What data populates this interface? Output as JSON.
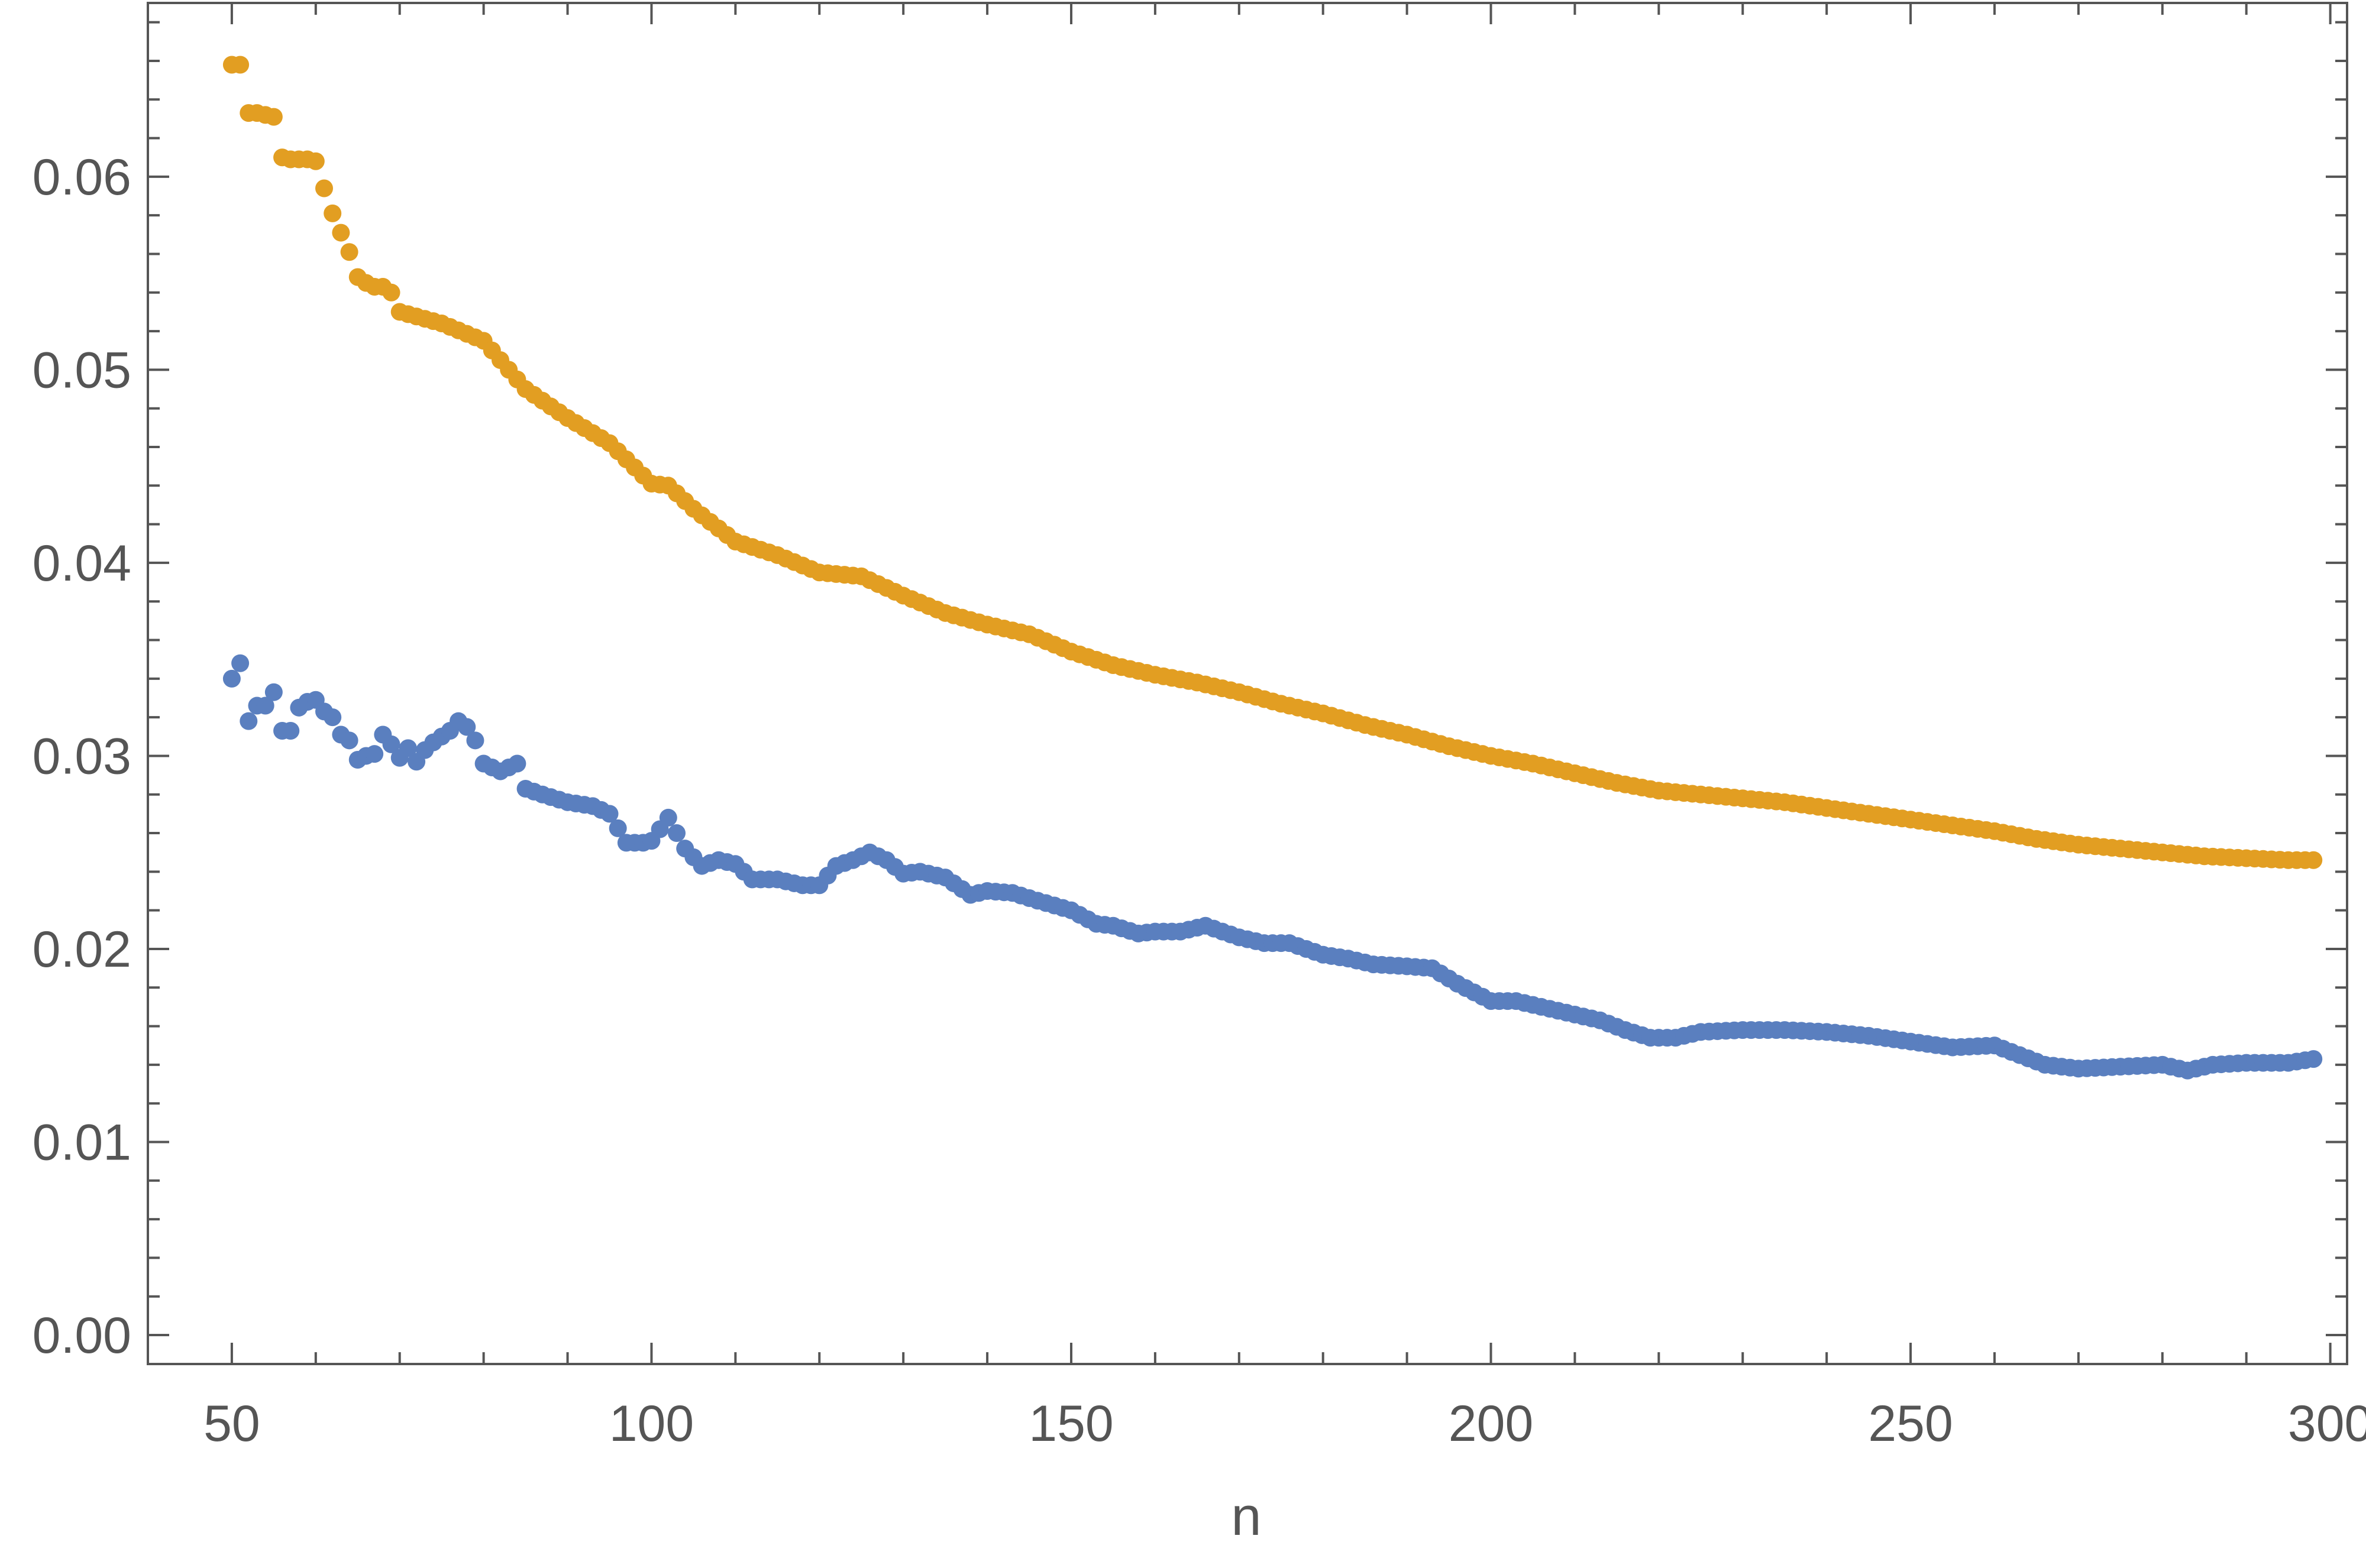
{
  "chart_data": {
    "type": "scatter",
    "title": "",
    "xlabel": "n",
    "ylabel": "",
    "xlim": [
      40,
      302
    ],
    "ylim": [
      -0.0015,
      0.069
    ],
    "x_ticks": [
      50,
      100,
      150,
      200,
      250,
      300
    ],
    "x_tick_labels": [
      "50",
      "100",
      "150",
      "200",
      "250",
      "300"
    ],
    "y_ticks": [
      0.0,
      0.01,
      0.02,
      0.03,
      0.04,
      0.05,
      0.06
    ],
    "y_tick_labels": [
      "0.00",
      "0.01",
      "0.02",
      "0.03",
      "0.04",
      "0.05",
      "0.06"
    ],
    "grid": false,
    "series": [
      {
        "color": "#e29e22",
        "points": [
          [
            50,
            0.0658
          ],
          [
            51,
            0.0658
          ],
          [
            52,
            0.0633
          ],
          [
            53,
            0.0633
          ],
          [
            54,
            0.0632
          ],
          [
            55,
            0.0631
          ],
          [
            56,
            0.061
          ],
          [
            57,
            0.0609
          ],
          [
            58,
            0.0609
          ],
          [
            59,
            0.0609
          ],
          [
            60,
            0.0608
          ],
          [
            61,
            0.0594
          ],
          [
            62,
            0.0581
          ],
          [
            63,
            0.0571
          ],
          [
            64,
            0.0561
          ],
          [
            65,
            0.0548
          ],
          [
            66,
            0.0545
          ],
          [
            67,
            0.0543
          ],
          [
            68,
            0.0543
          ],
          [
            69,
            0.054
          ],
          [
            70,
            0.053
          ],
          [
            75,
            0.0524
          ],
          [
            80,
            0.0515
          ],
          [
            85,
            0.049
          ],
          [
            90,
            0.0475
          ],
          [
            95,
            0.0462
          ],
          [
            100,
            0.0441
          ],
          [
            102,
            0.044
          ],
          [
            105,
            0.0428
          ],
          [
            110,
            0.0411
          ],
          [
            115,
            0.0404
          ],
          [
            120,
            0.0395
          ],
          [
            125,
            0.0393
          ],
          [
            130,
            0.0383
          ],
          [
            135,
            0.0374
          ],
          [
            140,
            0.0368
          ],
          [
            145,
            0.0363
          ],
          [
            150,
            0.0354
          ],
          [
            155,
            0.0347
          ],
          [
            160,
            0.0342
          ],
          [
            165,
            0.0338
          ],
          [
            170,
            0.0333
          ],
          [
            175,
            0.0327
          ],
          [
            180,
            0.0322
          ],
          [
            185,
            0.0316
          ],
          [
            190,
            0.0311
          ],
          [
            195,
            0.0305
          ],
          [
            200,
            0.03
          ],
          [
            205,
            0.0296
          ],
          [
            210,
            0.0291
          ],
          [
            215,
            0.0286
          ],
          [
            220,
            0.0282
          ],
          [
            225,
            0.028
          ],
          [
            230,
            0.0278
          ],
          [
            235,
            0.0276
          ],
          [
            240,
            0.0273
          ],
          [
            245,
            0.027
          ],
          [
            250,
            0.0267
          ],
          [
            255,
            0.0264
          ],
          [
            260,
            0.0261
          ],
          [
            265,
            0.0257
          ],
          [
            270,
            0.0254
          ],
          [
            275,
            0.0252
          ],
          [
            280,
            0.025
          ],
          [
            285,
            0.0248
          ],
          [
            290,
            0.0247
          ],
          [
            295,
            0.0246
          ],
          [
            298,
            0.0246
          ]
        ]
      },
      {
        "color": "#5a7fbf",
        "points": [
          [
            50,
            0.034
          ],
          [
            51,
            0.0348
          ],
          [
            52,
            0.0318
          ],
          [
            53,
            0.0326
          ],
          [
            54,
            0.0326
          ],
          [
            55,
            0.0333
          ],
          [
            56,
            0.0313
          ],
          [
            57,
            0.0313
          ],
          [
            58,
            0.0325
          ],
          [
            59,
            0.0328
          ],
          [
            60,
            0.0329
          ],
          [
            61,
            0.0323
          ],
          [
            62,
            0.032
          ],
          [
            63,
            0.0311
          ],
          [
            64,
            0.0308
          ],
          [
            65,
            0.0298
          ],
          [
            66,
            0.03
          ],
          [
            67,
            0.0301
          ],
          [
            68,
            0.0311
          ],
          [
            69,
            0.0306
          ],
          [
            70,
            0.0299
          ],
          [
            71,
            0.0304
          ],
          [
            72,
            0.0297
          ],
          [
            73,
            0.0303
          ],
          [
            74,
            0.0307
          ],
          [
            75,
            0.031
          ],
          [
            76,
            0.0313
          ],
          [
            77,
            0.0318
          ],
          [
            78,
            0.0315
          ],
          [
            79,
            0.0308
          ],
          [
            80,
            0.0296
          ],
          [
            82,
            0.0292
          ],
          [
            84,
            0.0296
          ],
          [
            85,
            0.0283
          ],
          [
            87,
            0.028
          ],
          [
            90,
            0.0276
          ],
          [
            93,
            0.0274
          ],
          [
            95,
            0.027
          ],
          [
            97,
            0.0255
          ],
          [
            99,
            0.0255
          ],
          [
            100,
            0.0256
          ],
          [
            102,
            0.0268
          ],
          [
            104,
            0.0252
          ],
          [
            106,
            0.0243
          ],
          [
            108,
            0.0246
          ],
          [
            110,
            0.0244
          ],
          [
            112,
            0.0236
          ],
          [
            115,
            0.0236
          ],
          [
            118,
            0.0233
          ],
          [
            120,
            0.0233
          ],
          [
            122,
            0.0243
          ],
          [
            124,
            0.0246
          ],
          [
            126,
            0.025
          ],
          [
            128,
            0.0246
          ],
          [
            130,
            0.0239
          ],
          [
            132,
            0.024
          ],
          [
            135,
            0.0237
          ],
          [
            138,
            0.0228
          ],
          [
            140,
            0.023
          ],
          [
            143,
            0.0229
          ],
          [
            146,
            0.0225
          ],
          [
            150,
            0.022
          ],
          [
            153,
            0.0213
          ],
          [
            155,
            0.0212
          ],
          [
            158,
            0.0208
          ],
          [
            160,
            0.0209
          ],
          [
            163,
            0.0209
          ],
          [
            166,
            0.0212
          ],
          [
            170,
            0.0206
          ],
          [
            173,
            0.0203
          ],
          [
            176,
            0.0203
          ],
          [
            180,
            0.0197
          ],
          [
            183,
            0.0195
          ],
          [
            186,
            0.0192
          ],
          [
            190,
            0.0191
          ],
          [
            193,
            0.019
          ],
          [
            196,
            0.0182
          ],
          [
            200,
            0.0173
          ],
          [
            203,
            0.0173
          ],
          [
            206,
            0.017
          ],
          [
            210,
            0.0166
          ],
          [
            213,
            0.0163
          ],
          [
            216,
            0.0158
          ],
          [
            219,
            0.0154
          ],
          [
            222,
            0.0154
          ],
          [
            225,
            0.0157
          ],
          [
            230,
            0.0158
          ],
          [
            235,
            0.0158
          ],
          [
            240,
            0.0157
          ],
          [
            245,
            0.0155
          ],
          [
            250,
            0.0152
          ],
          [
            255,
            0.0149
          ],
          [
            260,
            0.015
          ],
          [
            263,
            0.0145
          ],
          [
            266,
            0.014
          ],
          [
            270,
            0.0138
          ],
          [
            275,
            0.0139
          ],
          [
            280,
            0.014
          ],
          [
            283,
            0.0137
          ],
          [
            286,
            0.014
          ],
          [
            290,
            0.0141
          ],
          [
            295,
            0.0141
          ],
          [
            298,
            0.0143
          ]
        ]
      }
    ]
  }
}
